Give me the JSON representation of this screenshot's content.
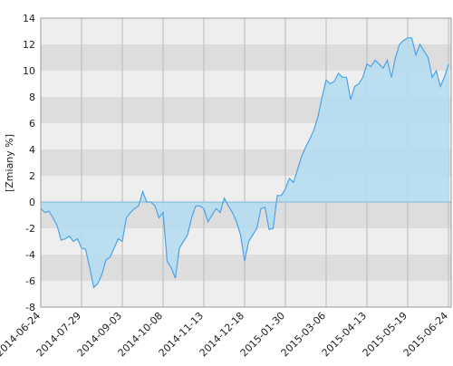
{
  "chart_data": {
    "type": "area",
    "y_label": "[Zmiany %]",
    "categories": [
      "2014-06-24",
      null,
      null,
      null,
      null,
      null,
      null,
      null,
      null,
      null,
      "2014-07-29",
      null,
      null,
      null,
      null,
      null,
      null,
      null,
      null,
      null,
      "2014-09-03",
      null,
      null,
      null,
      null,
      null,
      null,
      null,
      null,
      null,
      "2014-10-08",
      null,
      null,
      null,
      null,
      null,
      null,
      null,
      null,
      null,
      "2014-11-13",
      null,
      null,
      null,
      null,
      null,
      null,
      null,
      null,
      null,
      "2014-12-18",
      null,
      null,
      null,
      null,
      null,
      null,
      null,
      null,
      null,
      "2015-01-30",
      null,
      null,
      null,
      null,
      null,
      null,
      null,
      null,
      null,
      "2015-03-06",
      null,
      null,
      null,
      null,
      null,
      null,
      null,
      null,
      null,
      "2015-04-13",
      null,
      null,
      null,
      null,
      null,
      null,
      null,
      null,
      null,
      "2015-05-19",
      null,
      null,
      null,
      null,
      null,
      null,
      null,
      null,
      null,
      "2015-06-24"
    ],
    "values": [
      -0.5,
      -0.8,
      -0.7,
      -1.2,
      -1.8,
      -2.9,
      -2.8,
      -2.6,
      -3.0,
      -2.8,
      -3.5,
      -3.6,
      -5.0,
      -6.5,
      -6.2,
      -5.5,
      -4.4,
      -4.2,
      -3.5,
      -2.8,
      -3.0,
      -1.2,
      -0.8,
      -0.5,
      -0.3,
      0.8,
      0,
      0,
      -0.3,
      -1.2,
      -0.8,
      -4.5,
      -5.0,
      -5.8,
      -3.5,
      -3.0,
      -2.5,
      -1.2,
      -0.3,
      -0.3,
      -0.5,
      -1.5,
      -1.0,
      -0.5,
      -0.8,
      0.3,
      -0.3,
      -0.8,
      -1.5,
      -2.5,
      -4.5,
      -3.0,
      -2.5,
      -2.0,
      -0.5,
      -0.4,
      -2.1,
      -2.0,
      0.5,
      0.5,
      1.0,
      1.8,
      1.5,
      2.5,
      3.5,
      4.2,
      4.8,
      5.5,
      6.5,
      8.0,
      9.3,
      9.0,
      9.2,
      9.8,
      9.5,
      9.5,
      7.8,
      8.8,
      9.0,
      9.5,
      10.5,
      10.3,
      10.8,
      10.5,
      10.2,
      10.8,
      9.5,
      11.0,
      12.0,
      12.3,
      12.5,
      12.5,
      11.2,
      12.0,
      11.5,
      11.0,
      9.5,
      10.0,
      8.8,
      9.5,
      10.5
    ],
    "color": "#4da3e6",
    "fill": "#b5dcef",
    "ylim": [
      -8,
      14
    ],
    "yticks": [
      -8,
      -6,
      -4,
      -2,
      0,
      2,
      4,
      6,
      8,
      10,
      12,
      14
    ]
  }
}
